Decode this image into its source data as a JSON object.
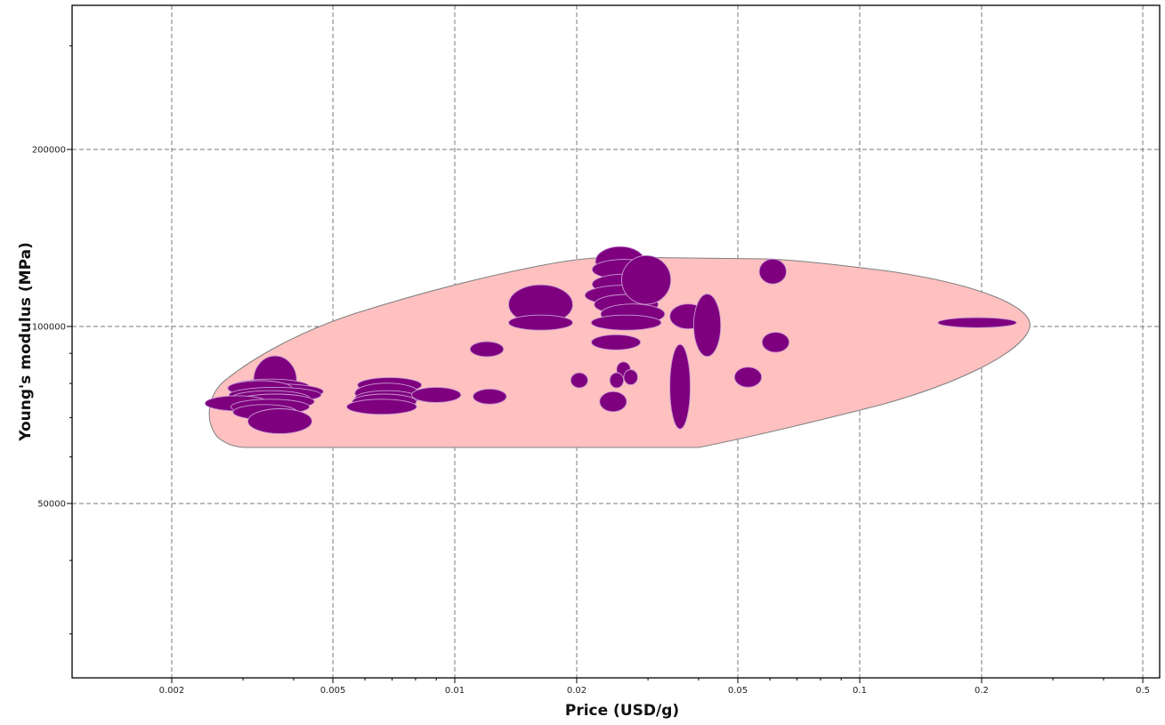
{
  "chart_data": {
    "type": "scatter",
    "subtype": "bubble-ellipse (material property chart)",
    "title": "",
    "xlabel": "Price (USD/g)",
    "ylabel": "Young's modulus (MPa)",
    "xscale": "log",
    "yscale": "log",
    "xlim": [
      0.0011,
      0.55
    ],
    "ylim": [
      22000,
      350000
    ],
    "grid": true,
    "legend": "none",
    "colors": {
      "bubble_fill": "#7f007f",
      "bubble_edge": "#c79ad0",
      "envelope_fill": "#ffc0c0",
      "envelope_edge": "#7f7f7f",
      "grid": "#7a7a7a"
    },
    "x_ticks": [
      {
        "value": 0.002,
        "label": "0.002"
      },
      {
        "value": 0.005,
        "label": "0.005"
      },
      {
        "value": 0.01,
        "label": "0.01"
      },
      {
        "value": 0.02,
        "label": "0.02"
      },
      {
        "value": 0.05,
        "label": "0.05"
      },
      {
        "value": 0.1,
        "label": "0.1"
      },
      {
        "value": 0.2,
        "label": "0.2"
      },
      {
        "value": 0.5,
        "label": "0.5"
      }
    ],
    "x_minor_ticks": [
      0.003,
      0.004,
      0.006,
      0.007,
      0.008,
      0.009,
      0.03,
      0.04,
      0.06,
      0.07,
      0.08,
      0.09,
      0.3,
      0.4
    ],
    "y_ticks": [
      {
        "value": 50000,
        "label": "50000"
      },
      {
        "value": 100000,
        "label": "100000"
      },
      {
        "value": 200000,
        "label": "200000"
      }
    ],
    "y_minor_ticks": [
      30000,
      40000,
      60000,
      70000,
      80000,
      90000,
      300000
    ],
    "envelope": {
      "description": "Pink convex hull enclosing all material bubbles",
      "approx_extent": {
        "price_min": 0.0024,
        "price_max": 0.26,
        "modulus_min": 65500,
        "modulus_max": 140000
      }
    },
    "points": [
      {
        "price": 0.0036,
        "modulus": 81000,
        "w": 1.13,
        "h": 1.1
      },
      {
        "price": 0.0035,
        "modulus": 79000,
        "w": 1.25,
        "h": 1.03
      },
      {
        "price": 0.0037,
        "modulus": 77500,
        "w": 1.28,
        "h": 1.03
      },
      {
        "price": 0.0033,
        "modulus": 78500,
        "w": 1.2,
        "h": 1.03
      },
      {
        "price": 0.0036,
        "modulus": 76500,
        "w": 1.3,
        "h": 1.03
      },
      {
        "price": 0.0035,
        "modulus": 75500,
        "w": 1.25,
        "h": 1.03
      },
      {
        "price": 0.0036,
        "modulus": 74500,
        "w": 1.25,
        "h": 1.03
      },
      {
        "price": 0.0029,
        "modulus": 74000,
        "w": 1.2,
        "h": 1.03
      },
      {
        "price": 0.0035,
        "modulus": 73000,
        "w": 1.25,
        "h": 1.03
      },
      {
        "price": 0.0034,
        "modulus": 71500,
        "w": 1.2,
        "h": 1.03
      },
      {
        "price": 0.0037,
        "modulus": 69000,
        "w": 1.2,
        "h": 1.05
      },
      {
        "price": 0.0069,
        "modulus": 79500,
        "w": 1.2,
        "h": 1.03
      },
      {
        "price": 0.0068,
        "modulus": 77000,
        "w": 1.2,
        "h": 1.04
      },
      {
        "price": 0.0068,
        "modulus": 75500,
        "w": 1.2,
        "h": 1.03
      },
      {
        "price": 0.0067,
        "modulus": 74500,
        "w": 1.2,
        "h": 1.03
      },
      {
        "price": 0.0066,
        "modulus": 73000,
        "w": 1.22,
        "h": 1.03
      },
      {
        "price": 0.009,
        "modulus": 76500,
        "w": 1.15,
        "h": 1.03
      },
      {
        "price": 0.012,
        "modulus": 91500,
        "w": 1.1,
        "h": 1.03
      },
      {
        "price": 0.0122,
        "modulus": 76000,
        "w": 1.1,
        "h": 1.03
      },
      {
        "price": 0.0163,
        "modulus": 109000,
        "w": 1.2,
        "h": 1.08
      },
      {
        "price": 0.0163,
        "modulus": 101500,
        "w": 1.2,
        "h": 1.03
      },
      {
        "price": 0.0203,
        "modulus": 81000,
        "w": 1.05,
        "h": 1.03
      },
      {
        "price": 0.0256,
        "modulus": 129000,
        "w": 1.15,
        "h": 1.06
      },
      {
        "price": 0.0262,
        "modulus": 125000,
        "w": 1.2,
        "h": 1.04
      },
      {
        "price": 0.0262,
        "modulus": 118000,
        "w": 1.2,
        "h": 1.04
      },
      {
        "price": 0.0262,
        "modulus": 113000,
        "w": 1.25,
        "h": 1.04
      },
      {
        "price": 0.0265,
        "modulus": 109000,
        "w": 1.2,
        "h": 1.04
      },
      {
        "price": 0.0275,
        "modulus": 105000,
        "w": 1.2,
        "h": 1.04
      },
      {
        "price": 0.0265,
        "modulus": 101500,
        "w": 1.22,
        "h": 1.03
      },
      {
        "price": 0.0297,
        "modulus": 120000,
        "w": 1.15,
        "h": 1.1
      },
      {
        "price": 0.025,
        "modulus": 94000,
        "w": 1.15,
        "h": 1.03
      },
      {
        "price": 0.0261,
        "modulus": 84500,
        "w": 1.04,
        "h": 1.03
      },
      {
        "price": 0.0251,
        "modulus": 81000,
        "w": 1.04,
        "h": 1.03
      },
      {
        "price": 0.0272,
        "modulus": 82000,
        "w": 1.04,
        "h": 1.03
      },
      {
        "price": 0.0246,
        "modulus": 74500,
        "w": 1.08,
        "h": 1.04
      },
      {
        "price": 0.036,
        "modulus": 79000,
        "w": 1.06,
        "h": 1.18
      },
      {
        "price": 0.0377,
        "modulus": 104000,
        "w": 1.11,
        "h": 1.05
      },
      {
        "price": 0.042,
        "modulus": 100500,
        "w": 1.08,
        "h": 1.13
      },
      {
        "price": 0.053,
        "modulus": 82000,
        "w": 1.08,
        "h": 1.04
      },
      {
        "price": 0.062,
        "modulus": 94000,
        "w": 1.08,
        "h": 1.04
      },
      {
        "price": 0.061,
        "modulus": 124000,
        "w": 1.08,
        "h": 1.05
      },
      {
        "price": 0.195,
        "modulus": 101500,
        "w": 1.25,
        "h": 1.02
      }
    ]
  },
  "axes": {
    "x_title": "Price (USD/g)",
    "y_title": "Young's modulus (MPa)"
  }
}
